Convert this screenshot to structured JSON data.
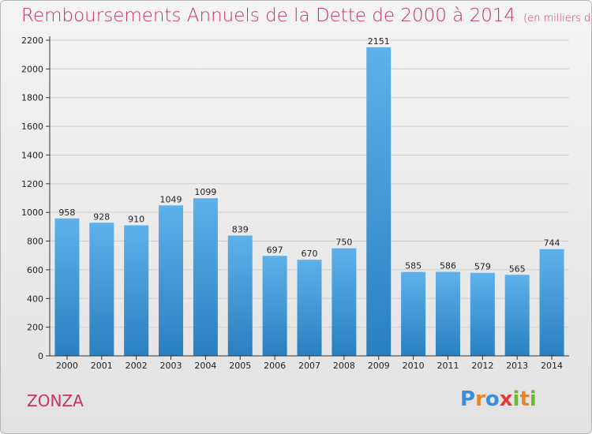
{
  "header": {
    "title": "Remboursements Annuels de la Dette de 2000 à 2014",
    "subtitle": "(en milliers d'€)"
  },
  "footer": {
    "place": "ZONZA",
    "brand_letters": [
      {
        "ch": "P",
        "color": "#3a8fd6"
      },
      {
        "ch": "r",
        "color": "#e3862d"
      },
      {
        "ch": "o",
        "color": "#3a8fd6"
      },
      {
        "ch": "x",
        "color": "#e33b3b"
      },
      {
        "ch": "i",
        "color": "#6bb832"
      },
      {
        "ch": "t",
        "color": "#e3862d"
      },
      {
        "ch": "i",
        "color": "#6bb832"
      }
    ]
  },
  "colors": {
    "title": "#c4336a",
    "bar_top": "#5eb1ea",
    "bar_bottom": "#2a7fc0",
    "grid": "#cfcfcf",
    "axis": "#333333"
  },
  "chart_data": {
    "type": "bar",
    "categories": [
      "2000",
      "2001",
      "2002",
      "2003",
      "2004",
      "2005",
      "2006",
      "2007",
      "2008",
      "2009",
      "2010",
      "2011",
      "2012",
      "2013",
      "2014"
    ],
    "values": [
      958,
      928,
      910,
      1049,
      1099,
      839,
      697,
      670,
      750,
      2151,
      585,
      586,
      579,
      565,
      744
    ],
    "yticks": [
      0,
      200,
      400,
      600,
      800,
      1000,
      1200,
      1400,
      1600,
      1800,
      2000,
      2200
    ],
    "ylim": [
      0,
      2200
    ],
    "grid": true,
    "data_labels": true
  }
}
